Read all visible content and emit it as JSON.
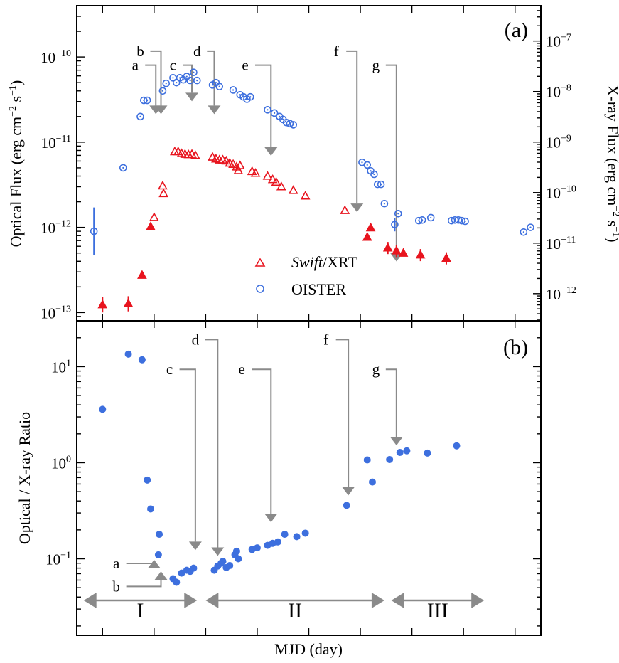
{
  "figure": {
    "xlabel": "MJD (day)",
    "colors": {
      "xray": "#e8141e",
      "optical": "#3d6fde",
      "arrow": "#8a8a8a",
      "frame": "#000000"
    }
  },
  "chart_data": [
    {
      "type": "scatter",
      "panel": "(a)",
      "title": "",
      "xlabel": "MJD (day)",
      "ylabel": "Optical Flux (erg cm⁻² s⁻¹)",
      "ylabel_parts": {
        "base": "Optical Flux (erg cm",
        "e1": "−2",
        "mid": " s",
        "e2": "−1",
        "end": ")"
      },
      "y2label": "X-ray Flux (erg cm⁻² s⁻¹)",
      "y2label_parts": {
        "base": "X-ray Flux (erg cm",
        "e1": "−2",
        "mid": " s",
        "e2": "−1",
        "end": ")"
      },
      "xlim": [
        -1.5,
        25.5
      ],
      "ylim": [
        8e-14,
        4e-10
      ],
      "y2lim": [
        2.9e-13,
        5e-07
      ],
      "yticks": [
        {
          "exp": "−13",
          "value": 1e-13
        },
        {
          "exp": "−12",
          "value": 1e-12
        },
        {
          "exp": "−11",
          "value": 1e-11
        },
        {
          "exp": "−10",
          "value": 1e-10
        }
      ],
      "y2ticks": [
        {
          "exp": "−12",
          "value": 1e-12
        },
        {
          "exp": "−11",
          "value": 1e-11
        },
        {
          "exp": "−10",
          "value": 1e-10
        },
        {
          "exp": "−9",
          "value": 1e-09
        },
        {
          "exp": "−8",
          "value": 1e-08
        },
        {
          "exp": "−7",
          "value": 1e-07
        }
      ],
      "legend": [
        {
          "label_italic": "Swift",
          "label_rest": "/XRT",
          "marker": "triangle",
          "color": "#e8141e"
        },
        {
          "label_italic": "",
          "label_rest": "OISTER",
          "marker": "circle",
          "color": "#3d6fde"
        }
      ],
      "legend_placement": "lower-center",
      "series": [
        {
          "name": "Swift/XRT",
          "axis": "right",
          "marker": "triangle",
          "color": "#e8141e",
          "points": [
            {
              "x": 0.0,
              "y": 6e-13,
              "err": 0.15
            },
            {
              "x": 1.5,
              "y": 6.3e-13,
              "err": 0.15
            },
            {
              "x": 2.3,
              "y": 2.3e-12
            },
            {
              "x": 2.8,
              "y": 2.1e-11
            },
            {
              "x": 3.0,
              "y": 3.2e-11
            },
            {
              "x": 3.5,
              "y": 1.35e-10
            },
            {
              "x": 3.55,
              "y": 9.5e-11
            },
            {
              "x": 4.2,
              "y": 6.4e-10
            },
            {
              "x": 4.4,
              "y": 6.4e-10
            },
            {
              "x": 4.6,
              "y": 5.9e-10
            },
            {
              "x": 4.8,
              "y": 5.7e-10
            },
            {
              "x": 5.0,
              "y": 5.6e-10
            },
            {
              "x": 5.2,
              "y": 5.7e-10
            },
            {
              "x": 5.4,
              "y": 5.4e-10
            },
            {
              "x": 6.4,
              "y": 5e-10
            },
            {
              "x": 6.6,
              "y": 4.6e-10
            },
            {
              "x": 6.8,
              "y": 4.4e-10
            },
            {
              "x": 7.0,
              "y": 4.4e-10
            },
            {
              "x": 7.2,
              "y": 4.2e-10
            },
            {
              "x": 7.4,
              "y": 3.8e-10
            },
            {
              "x": 7.6,
              "y": 3.6e-10
            },
            {
              "x": 7.8,
              "y": 3.2e-10
            },
            {
              "x": 7.9,
              "y": 2.7e-10
            },
            {
              "x": 8.0,
              "y": 3.4e-10
            },
            {
              "x": 8.7,
              "y": 2.6e-10
            },
            {
              "x": 8.9,
              "y": 2.4e-10
            },
            {
              "x": 9.6,
              "y": 2.1e-10
            },
            {
              "x": 9.9,
              "y": 1.8e-10
            },
            {
              "x": 10.1,
              "y": 1.6e-10
            },
            {
              "x": 10.4,
              "y": 1.3e-10
            },
            {
              "x": 11.1,
              "y": 1.1e-10
            },
            {
              "x": 11.8,
              "y": 8.5e-11
            },
            {
              "x": 14.1,
              "y": 4.4e-11
            },
            {
              "x": 15.4,
              "y": 1.3e-11
            },
            {
              "x": 15.6,
              "y": 2e-11
            },
            {
              "x": 16.6,
              "y": 8e-12,
              "err": 0.12
            },
            {
              "x": 17.1,
              "y": 7e-12,
              "err": 0.12
            },
            {
              "x": 17.5,
              "y": 6.3e-12
            },
            {
              "x": 18.5,
              "y": 5.8e-12,
              "err": 0.12
            },
            {
              "x": 20.0,
              "y": 5e-12,
              "err": 0.12
            }
          ]
        },
        {
          "name": "OISTER",
          "axis": "left",
          "marker": "circle",
          "color": "#3d6fde",
          "points": [
            {
              "x": -0.5,
              "y": 9e-13,
              "err": 0.28
            },
            {
              "x": 1.2,
              "y": 5e-12
            },
            {
              "x": 2.2,
              "y": 2e-11
            },
            {
              "x": 2.4,
              "y": 3.1e-11
            },
            {
              "x": 2.6,
              "y": 3.1e-11
            },
            {
              "x": 3.5,
              "y": 4e-11
            },
            {
              "x": 3.7,
              "y": 4.9e-11
            },
            {
              "x": 4.1,
              "y": 5.7e-11
            },
            {
              "x": 4.3,
              "y": 5e-11
            },
            {
              "x": 4.5,
              "y": 5.7e-11
            },
            {
              "x": 4.7,
              "y": 5.4e-11
            },
            {
              "x": 4.9,
              "y": 5.9e-11
            },
            {
              "x": 5.1,
              "y": 5.3e-11
            },
            {
              "x": 5.3,
              "y": 6.6e-11
            },
            {
              "x": 5.5,
              "y": 5.3e-11
            },
            {
              "x": 6.4,
              "y": 4.7e-11
            },
            {
              "x": 6.6,
              "y": 5e-11
            },
            {
              "x": 6.8,
              "y": 4.5e-11
            },
            {
              "x": 7.6,
              "y": 4.1e-11
            },
            {
              "x": 8.0,
              "y": 3.6e-11
            },
            {
              "x": 8.2,
              "y": 3.4e-11
            },
            {
              "x": 8.4,
              "y": 3.2e-11
            },
            {
              "x": 8.6,
              "y": 3.4e-11
            },
            {
              "x": 9.6,
              "y": 2.4e-11
            },
            {
              "x": 10.0,
              "y": 2.2e-11
            },
            {
              "x": 10.3,
              "y": 2e-11
            },
            {
              "x": 10.5,
              "y": 1.85e-11
            },
            {
              "x": 10.7,
              "y": 1.7e-11
            },
            {
              "x": 10.9,
              "y": 1.65e-11
            },
            {
              "x": 11.1,
              "y": 1.6e-11
            },
            {
              "x": 15.1,
              "y": 5.8e-12
            },
            {
              "x": 15.4,
              "y": 5.4e-12
            },
            {
              "x": 15.6,
              "y": 4.6e-12
            },
            {
              "x": 15.8,
              "y": 4.2e-12
            },
            {
              "x": 16.0,
              "y": 3.2e-12
            },
            {
              "x": 16.2,
              "y": 3.2e-12
            },
            {
              "x": 16.4,
              "y": 1.9e-12
            },
            {
              "x": 17.0,
              "y": 1.08e-12,
              "err": 0.08
            },
            {
              "x": 17.2,
              "y": 1.45e-12
            },
            {
              "x": 18.4,
              "y": 1.2e-12
            },
            {
              "x": 18.6,
              "y": 1.22e-12
            },
            {
              "x": 19.1,
              "y": 1.3e-12
            },
            {
              "x": 20.3,
              "y": 1.2e-12
            },
            {
              "x": 20.5,
              "y": 1.22e-12
            },
            {
              "x": 20.7,
              "y": 1.22e-12
            },
            {
              "x": 20.9,
              "y": 1.2e-12
            },
            {
              "x": 21.1,
              "y": 1.18e-12
            },
            {
              "x": 24.5,
              "y": 8.8e-13
            },
            {
              "x": 24.9,
              "y": 1e-12
            }
          ]
        }
      ],
      "annotations": [
        {
          "label": "a",
          "x": 3.1,
          "text_x": 1.9,
          "text_logy": -10.155,
          "turn_x": 3.1,
          "tip_logy": -10.67,
          "side": "left"
        },
        {
          "label": "b",
          "x": 3.4,
          "text_x": 2.2,
          "text_logy": -9.99,
          "turn_x": 3.4,
          "tip_logy": -10.67,
          "side": "left"
        },
        {
          "label": "c",
          "x": 5.2,
          "text_x": 4.1,
          "text_logy": -10.155,
          "turn_x": 5.2,
          "tip_logy": -10.52,
          "side": "left"
        },
        {
          "label": "d",
          "x": 6.5,
          "text_x": 5.5,
          "text_logy": -9.99,
          "turn_x": 6.5,
          "tip_logy": -10.67,
          "side": "left"
        },
        {
          "label": "e",
          "x": 9.8,
          "text_x": 8.3,
          "text_logy": -10.155,
          "turn_x": 9.8,
          "tip_logy": -11.16,
          "side": "left"
        },
        {
          "label": "f",
          "x": 14.8,
          "text_x": 13.6,
          "text_logy": -9.99,
          "turn_x": 14.8,
          "tip_logy": -11.82,
          "side": "left"
        },
        {
          "label": "g",
          "x": 17.1,
          "text_x": 15.9,
          "text_logy": -10.155,
          "turn_x": 17.1,
          "tip_logy": -12.4,
          "side": "left"
        }
      ]
    },
    {
      "type": "scatter",
      "panel": "(b)",
      "title": "",
      "xlabel": "MJD (day)",
      "ylabel": "Optical / X-ray Ratio",
      "xlim": [
        -1.5,
        25.5
      ],
      "ylim": [
        0.016,
        30
      ],
      "yticks": [
        {
          "exp": "−1",
          "value": 0.1
        },
        {
          "exp": "0",
          "value": 1
        },
        {
          "exp": "1",
          "value": 10
        }
      ],
      "series": [
        {
          "name": "Optical / X-ray",
          "marker": "filled-circle",
          "color": "#3d6fde",
          "points": [
            {
              "x": 0.0,
              "y": 3.6
            },
            {
              "x": 1.5,
              "y": 13.5
            },
            {
              "x": 2.3,
              "y": 11.8
            },
            {
              "x": 2.6,
              "y": 0.66
            },
            {
              "x": 2.8,
              "y": 0.33
            },
            {
              "x": 3.3,
              "y": 0.18
            },
            {
              "x": 3.25,
              "y": 0.11
            },
            {
              "x": 4.1,
              "y": 0.062
            },
            {
              "x": 4.3,
              "y": 0.057
            },
            {
              "x": 4.6,
              "y": 0.071
            },
            {
              "x": 4.9,
              "y": 0.076
            },
            {
              "x": 5.1,
              "y": 0.074
            },
            {
              "x": 5.3,
              "y": 0.08
            },
            {
              "x": 6.5,
              "y": 0.076
            },
            {
              "x": 6.7,
              "y": 0.084
            },
            {
              "x": 6.9,
              "y": 0.09
            },
            {
              "x": 7.0,
              "y": 0.094
            },
            {
              "x": 7.2,
              "y": 0.081
            },
            {
              "x": 7.4,
              "y": 0.085
            },
            {
              "x": 7.7,
              "y": 0.11
            },
            {
              "x": 7.9,
              "y": 0.1
            },
            {
              "x": 7.8,
              "y": 0.12
            },
            {
              "x": 8.7,
              "y": 0.125
            },
            {
              "x": 9.0,
              "y": 0.13
            },
            {
              "x": 9.6,
              "y": 0.138
            },
            {
              "x": 9.9,
              "y": 0.145
            },
            {
              "x": 10.2,
              "y": 0.15
            },
            {
              "x": 10.6,
              "y": 0.18
            },
            {
              "x": 11.3,
              "y": 0.17
            },
            {
              "x": 11.8,
              "y": 0.185
            },
            {
              "x": 14.2,
              "y": 0.36
            },
            {
              "x": 15.4,
              "y": 1.07
            },
            {
              "x": 15.7,
              "y": 0.63
            },
            {
              "x": 16.7,
              "y": 1.08
            },
            {
              "x": 17.3,
              "y": 1.28
            },
            {
              "x": 17.7,
              "y": 1.33
            },
            {
              "x": 18.9,
              "y": 1.26
            },
            {
              "x": 20.6,
              "y": 1.5
            }
          ]
        }
      ],
      "annotations": [
        {
          "label": "a",
          "x": 3.0,
          "text_x": 0.8,
          "text_logy": -1.1,
          "turn_x": 3.0,
          "tip_logy": -1.01,
          "direction": "up"
        },
        {
          "label": "b",
          "x": 3.4,
          "text_x": 0.8,
          "text_logy": -1.34,
          "turn_x": 3.4,
          "tip_logy": -1.13,
          "direction": "up"
        },
        {
          "label": "c",
          "x": 5.4,
          "text_x": 3.9,
          "text_logy": 0.92,
          "turn_x": 5.4,
          "tip_logy": -0.91,
          "direction": "down"
        },
        {
          "label": "d",
          "x": 6.7,
          "text_x": 5.4,
          "text_logy": 1.23,
          "turn_x": 6.7,
          "tip_logy": -0.97,
          "direction": "down"
        },
        {
          "label": "e",
          "x": 9.8,
          "text_x": 8.1,
          "text_logy": 0.92,
          "turn_x": 9.8,
          "tip_logy": -0.62,
          "direction": "down"
        },
        {
          "label": "f",
          "x": 14.3,
          "text_x": 13.0,
          "text_logy": 1.23,
          "turn_x": 14.3,
          "tip_logy": -0.34,
          "direction": "down"
        },
        {
          "label": "g",
          "x": 17.1,
          "text_x": 15.9,
          "text_logy": 0.92,
          "turn_x": 17.1,
          "tip_logy": 0.18,
          "direction": "down"
        }
      ],
      "phases": [
        {
          "label": "I",
          "x_from": -1.1,
          "x_to": 5.5
        },
        {
          "label": "II",
          "x_from": 6.0,
          "x_to": 16.4
        },
        {
          "label": "III",
          "x_from": 16.8,
          "x_to": 22.2
        }
      ]
    }
  ]
}
